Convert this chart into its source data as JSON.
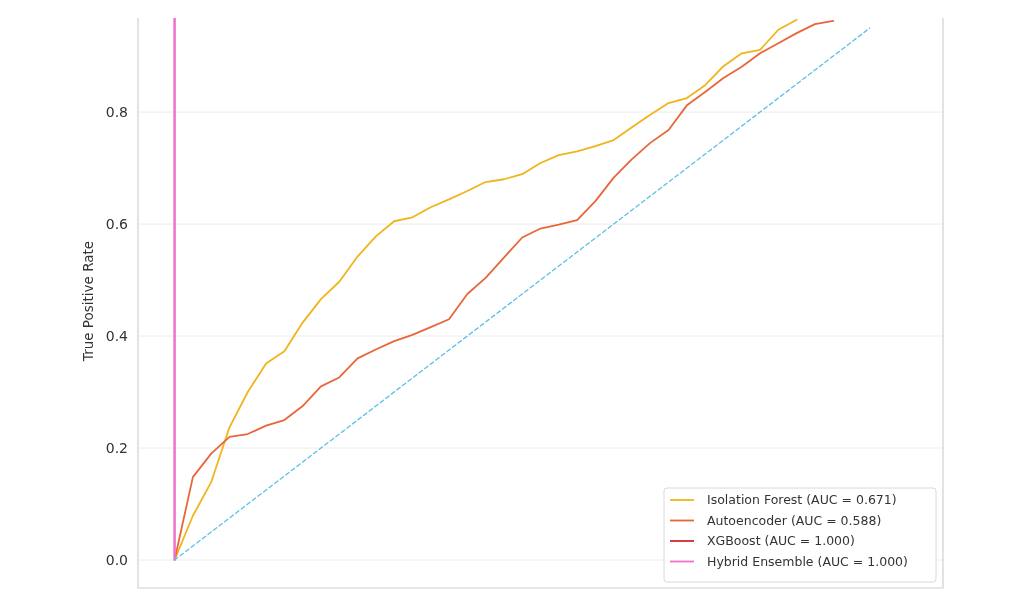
{
  "chart_data": {
    "type": "line",
    "ylabel": "True Positive Rate",
    "ylim": [
      -0.05,
      0.968
    ],
    "categories": [
      null,
      null,
      null,
      null,
      null,
      null,
      null,
      null,
      null,
      null,
      null,
      null,
      null,
      null,
      null,
      null,
      null,
      null,
      null,
      null,
      null,
      null,
      null,
      null,
      null,
      null,
      null,
      null,
      null,
      null,
      null,
      null,
      null,
      null,
      null,
      null,
      null,
      null,
      null,
      null,
      null,
      null,
      null,
      null,
      null
    ],
    "yticks": [
      {
        "value": 0,
        "label": "0.0"
      },
      {
        "value": 0.2,
        "label": "0.2"
      },
      {
        "value": 0.4,
        "label": "0.4"
      },
      {
        "value": 0.6,
        "label": "0.6"
      },
      {
        "value": 0.8,
        "label": "0.8"
      }
    ],
    "grid": "y",
    "legend": "bottom right",
    "line_style": "solid",
    "series": [
      {
        "name": "Isolation Forest (AUC = 0.671)",
        "color": "#f0b41c",
        "values": [
          null,
          null,
          0,
          0.079,
          0.139,
          0.237,
          0.3,
          0.351,
          0.373,
          0.424,
          0.466,
          0.497,
          0.542,
          0.578,
          0.605,
          0.612,
          0.63,
          0.644,
          0.659,
          0.675,
          0.68,
          0.689,
          0.709,
          0.723,
          0.73,
          0.739,
          0.75,
          0.773,
          0.795,
          0.816,
          0.825,
          0.848,
          0.882,
          0.905,
          0.911,
          0.947,
          0.965,
          null,
          null,
          null,
          null,
          null,
          null,
          null,
          null
        ]
      },
      {
        "name": "Autoencoder (AUC = 0.588)",
        "color": "#e8663a",
        "values": [
          null,
          null,
          0,
          0.148,
          0.19,
          0.22,
          0.225,
          0.24,
          0.25,
          0.275,
          0.31,
          0.326,
          0.36,
          0.376,
          0.391,
          0.402,
          0.416,
          0.43,
          0.475,
          0.504,
          0.54,
          0.576,
          0.592,
          0.599,
          0.607,
          0.641,
          0.683,
          0.716,
          0.745,
          0.768,
          0.812,
          0.836,
          0.861,
          0.881,
          0.905,
          0.923,
          0.941,
          0.957,
          0.963,
          null,
          null,
          null,
          null,
          null,
          null
        ]
      },
      {
        "name": "XGBoost (AUC = 1.000)",
        "color": "#d62728",
        "type": "bar",
        "values": [
          null,
          null,
          null,
          null,
          null,
          null,
          null,
          null,
          null,
          null,
          null,
          null,
          null,
          null,
          null,
          null,
          null,
          null,
          null,
          null,
          null,
          null,
          null,
          null,
          null,
          null,
          null,
          null,
          null,
          null,
          null,
          null,
          null,
          null,
          null,
          null,
          null,
          null,
          null,
          null,
          null,
          null,
          null,
          null,
          null
        ]
      },
      {
        "name": "Hybrid Ensemble (AUC = 1.000)",
        "color": "#ee72cc",
        "type": "bar",
        "values": [
          null,
          null,
          0.968,
          null,
          null,
          null,
          null,
          null,
          null,
          null,
          null,
          null,
          null,
          null,
          null,
          null,
          null,
          null,
          null,
          null,
          null,
          null,
          null,
          null,
          null,
          null,
          null,
          null,
          null,
          null,
          null,
          null,
          null,
          null,
          null,
          null,
          null,
          null,
          null,
          null,
          null,
          null,
          null,
          null,
          null
        ]
      },
      {
        "color": "#5bbfe6",
        "line_style": "dashed",
        "values": [
          null,
          null,
          0,
          0.025,
          0.05,
          0.075,
          0.1,
          0.125,
          0.15,
          0.175,
          0.2,
          0.225,
          0.25,
          0.275,
          0.3,
          0.325,
          0.35,
          0.375,
          0.4,
          0.425,
          0.45,
          0.475,
          0.5,
          0.525,
          0.55,
          0.575,
          0.6,
          0.625,
          0.65,
          0.675,
          0.7,
          0.725,
          0.75,
          0.775,
          0.8,
          0.825,
          0.85,
          0.875,
          0.9,
          0.925,
          0.95,
          null,
          null,
          null,
          null
        ]
      }
    ]
  }
}
